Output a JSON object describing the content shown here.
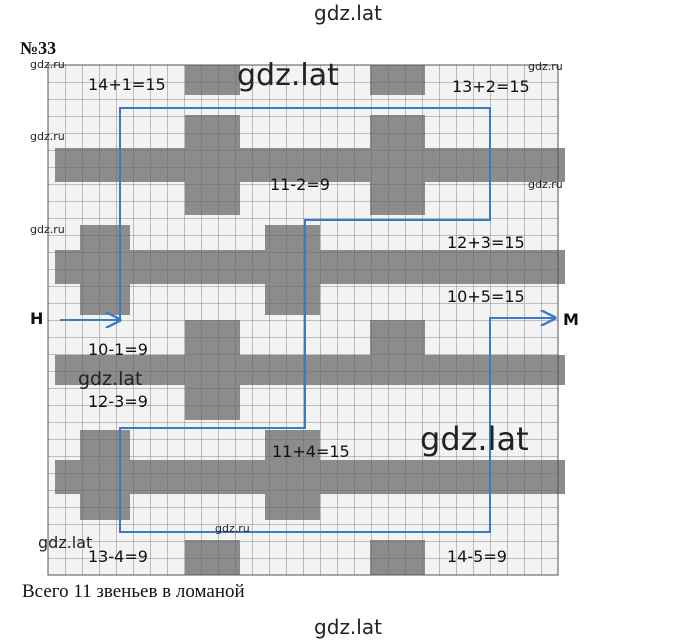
{
  "header": {
    "watermark": "gdz.lat"
  },
  "problem_number": "№33",
  "labels": [
    "14+1=15",
    "13+2=15",
    "11-2=9",
    "12+3=15",
    "10+5=15",
    "Н",
    "М",
    "10-1=9",
    "12-3=9",
    "11+4=15",
    "13-4=9",
    "14-5=9"
  ],
  "watermarks": [
    "gdz.lat",
    "gdz.lat",
    "gdz.lat",
    "gdz.lat",
    "gdz.ru",
    "gdz.ru",
    "gdz.ru",
    "gdz.ru",
    "gdz.ru",
    "gdz.ru"
  ],
  "caption": "Всего 11 звеньев в ломаной",
  "footer": {
    "watermark": "gdz.lat"
  }
}
